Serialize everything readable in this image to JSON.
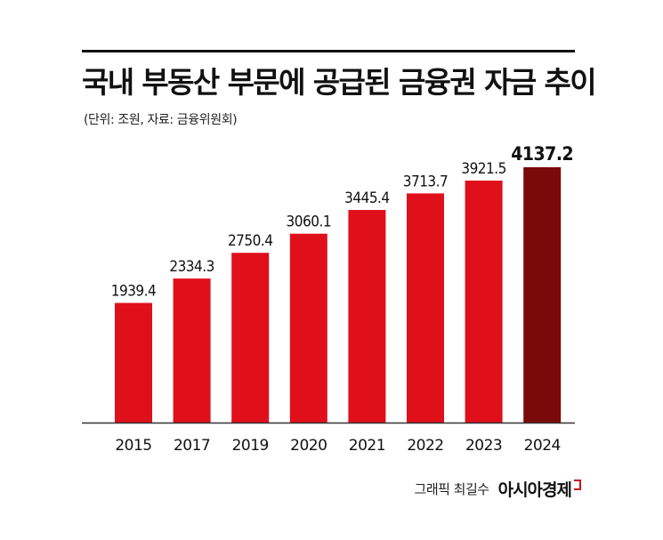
{
  "header": {
    "title": "국내 부동산 부문에 공급된 금융권 자금 추이",
    "subtitle": "(단위: 조원, 자료: 금융위원회)"
  },
  "footer": {
    "credit": "그래픽 최길수",
    "brand": "아시아경제"
  },
  "colors": {
    "bar": "#e0101b",
    "highlight_bar": "#7a0a0a",
    "axis": "#333333",
    "text": "#111111"
  },
  "chart_data": {
    "type": "bar",
    "title": "국내 부동산 부문에 공급된 금융권 자금 추이",
    "categories": [
      "2015",
      "2017",
      "2019",
      "2020",
      "2021",
      "2022",
      "2023",
      "2024"
    ],
    "values": [
      1939.4,
      2334.3,
      2750.4,
      3060.1,
      3445.4,
      3713.7,
      3921.5,
      4137.2
    ],
    "value_labels": [
      "1939.4",
      "2334.3",
      "2750.4",
      "3060.1",
      "3445.4",
      "3713.7",
      "3921.5",
      "4137.2"
    ],
    "highlight_category": "2024",
    "grid": false,
    "legend": "none"
  }
}
